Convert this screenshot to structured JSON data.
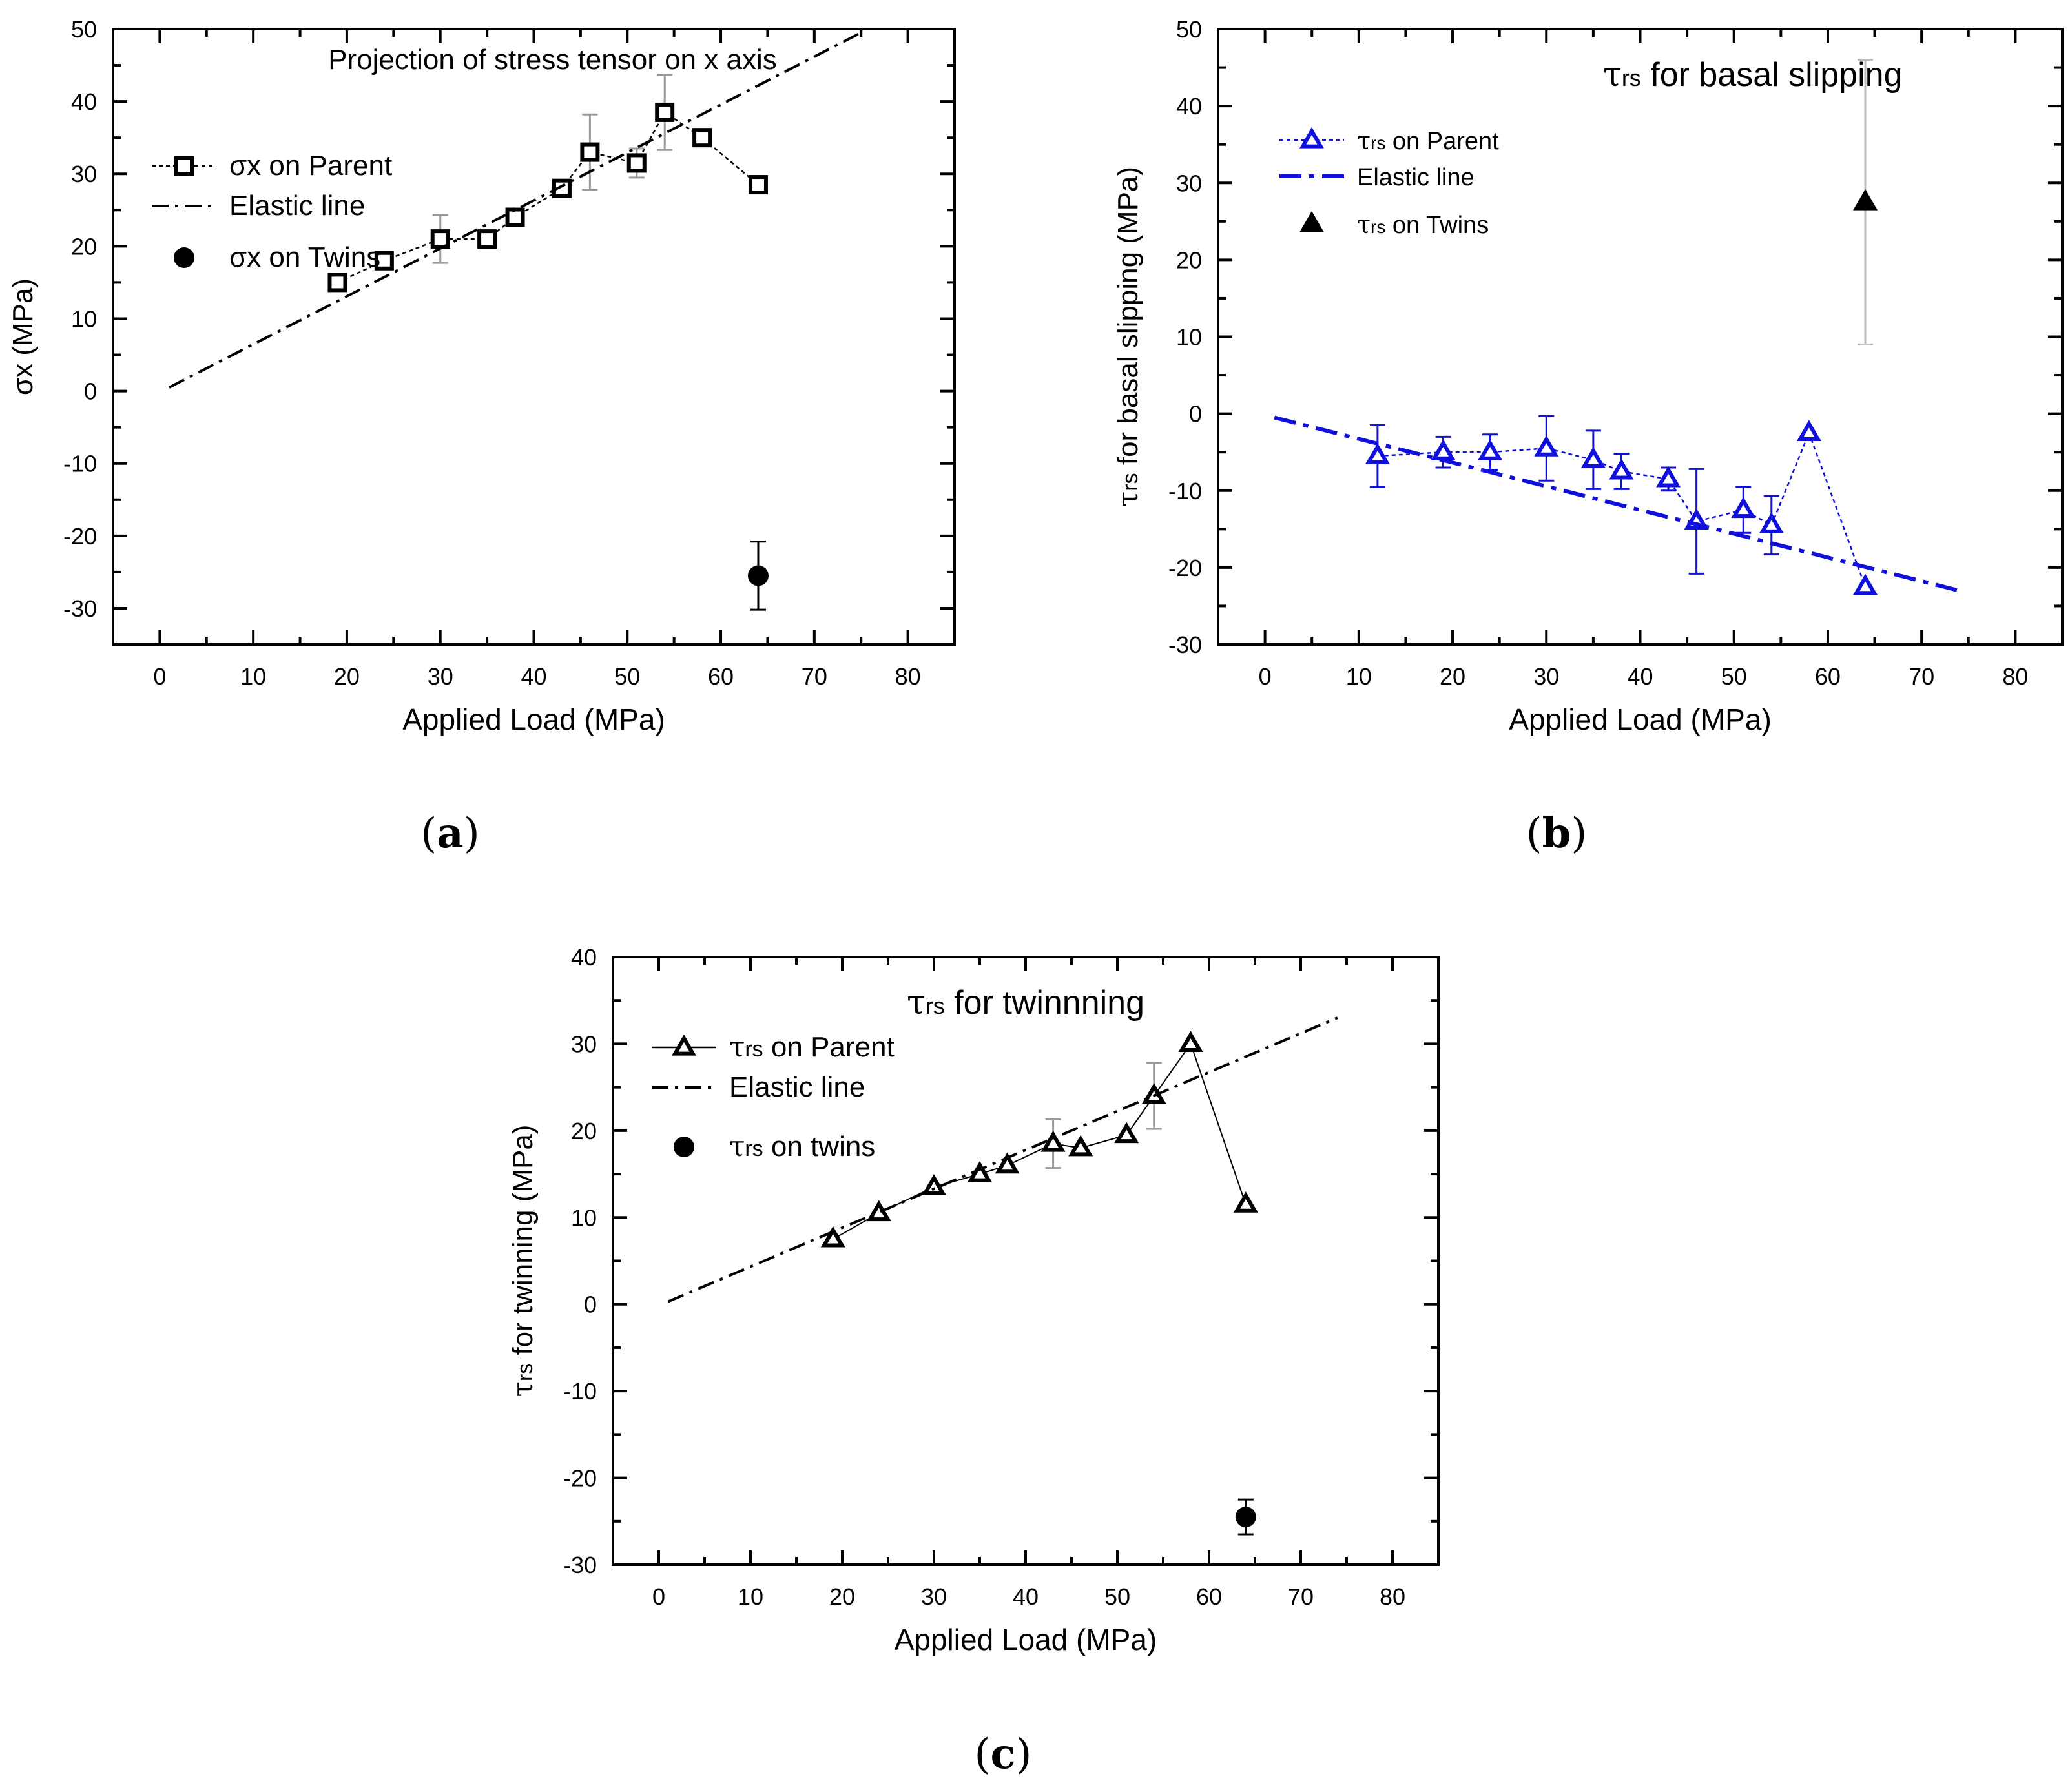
{
  "chart_data": [
    {
      "id": "a",
      "type": "scatter",
      "caption_letter": "a",
      "title": "Projection of stress tensor on x axis",
      "xlabel": "Applied Load (MPa)",
      "ylabel": "σx (MPa)",
      "xlim": [
        -5,
        85
      ],
      "ylim": [
        -35,
        50
      ],
      "xticks": [
        0,
        10,
        20,
        30,
        40,
        50,
        60,
        70,
        80
      ],
      "yticks": [
        -30,
        -20,
        -10,
        0,
        10,
        20,
        30,
        40,
        50
      ],
      "legend_placement": "upper-left",
      "colors": {
        "parent": "#000000",
        "elastic": "#000000",
        "twins": "#000000",
        "errorbar": "#999999"
      },
      "series": [
        {
          "name": "σx on Parent",
          "role": "parent",
          "marker": "square-open",
          "line": "dotted",
          "x": [
            19,
            24,
            30,
            35,
            38,
            43,
            46,
            51,
            54,
            58,
            64
          ],
          "y": [
            15,
            18,
            21,
            21,
            24,
            28,
            33,
            31.5,
            38.5,
            35,
            28.5
          ],
          "err": [
            0,
            0,
            3.3,
            0,
            0,
            0,
            5.2,
            2,
            5.2,
            0,
            0
          ]
        },
        {
          "name": "Elastic line",
          "role": "elastic",
          "line": "dash-dot",
          "x": [
            1,
            75
          ],
          "y": [
            0.5,
            49.5
          ]
        },
        {
          "name": "σx on Twins",
          "role": "twins",
          "marker": "circle-filled",
          "x": [
            64
          ],
          "y": [
            -25.5
          ],
          "err": [
            4.7
          ]
        }
      ]
    },
    {
      "id": "b",
      "type": "scatter",
      "caption_letter": "b",
      "title": "τrs  for basal slipping",
      "xlabel": "Applied Load (MPa)",
      "ylabel": "τrs for basal slipping (MPa)",
      "xlim": [
        -5,
        85
      ],
      "ylim": [
        -30,
        50
      ],
      "xticks": [
        0,
        10,
        20,
        30,
        40,
        50,
        60,
        70,
        80
      ],
      "yticks": [
        -30,
        -20,
        -10,
        0,
        10,
        20,
        30,
        40,
        50
      ],
      "legend_placement": "upper-left",
      "colors": {
        "parent": "#1010dd",
        "elastic": "#1010dd",
        "twins": "#000000",
        "errorbar": "#1010dd",
        "twins_errorbar": "#bbbbbb"
      },
      "series": [
        {
          "name": "τrs on Parent",
          "role": "parent",
          "marker": "triangle-open",
          "line": "dotted",
          "x": [
            12,
            19,
            24,
            30,
            35,
            38,
            43,
            46,
            51,
            54,
            58,
            64
          ],
          "y": [
            -5.5,
            -5,
            -5,
            -4.5,
            -6,
            -7.5,
            -8.5,
            -14,
            -12.5,
            -14.5,
            -2.5,
            -22.5
          ],
          "err": [
            4,
            2,
            2.3,
            4.2,
            3.8,
            2.3,
            1.5,
            6.8,
            3,
            3.8,
            0,
            0
          ]
        },
        {
          "name": "Elastic line",
          "role": "elastic",
          "line": "dash-dot",
          "x": [
            1,
            74
          ],
          "y": [
            -0.5,
            -23
          ]
        },
        {
          "name": "τrs on Twins",
          "role": "twins",
          "marker": "triangle-filled",
          "x": [
            64
          ],
          "y": [
            27.5
          ],
          "err": [
            18.5
          ]
        }
      ]
    },
    {
      "id": "c",
      "type": "scatter",
      "caption_letter": "c",
      "title": "τrs for twinnning",
      "xlabel": "Applied Load (MPa)",
      "ylabel": "τrs for twinning (MPa)",
      "xlim": [
        -5,
        85
      ],
      "ylim": [
        -30,
        40
      ],
      "xticks": [
        0,
        10,
        20,
        30,
        40,
        50,
        60,
        70,
        80
      ],
      "yticks": [
        -30,
        -20,
        -10,
        0,
        10,
        20,
        30,
        40
      ],
      "legend_placement": "upper-left",
      "colors": {
        "parent": "#000000",
        "elastic": "#000000",
        "twins": "#000000",
        "errorbar": "#999999"
      },
      "series": [
        {
          "name": "τrs on Parent",
          "role": "parent",
          "marker": "triangle-open",
          "line": "solid-thin",
          "x": [
            19,
            24,
            30,
            35,
            38,
            43,
            46,
            51,
            54,
            58,
            64
          ],
          "y": [
            7.5,
            10.5,
            13.5,
            15,
            16,
            18.5,
            18,
            19.5,
            24,
            30,
            11.5
          ],
          "err": [
            0,
            0,
            0,
            0,
            0,
            2.8,
            0,
            0,
            3.8,
            0,
            0
          ]
        },
        {
          "name": "Elastic line",
          "role": "elastic",
          "line": "dash-dot",
          "x": [
            1,
            74
          ],
          "y": [
            0.3,
            33
          ]
        },
        {
          "name": "τrs on twins",
          "role": "twins",
          "marker": "circle-filled",
          "x": [
            64
          ],
          "y": [
            -24.5
          ],
          "err": [
            2
          ]
        }
      ]
    }
  ]
}
